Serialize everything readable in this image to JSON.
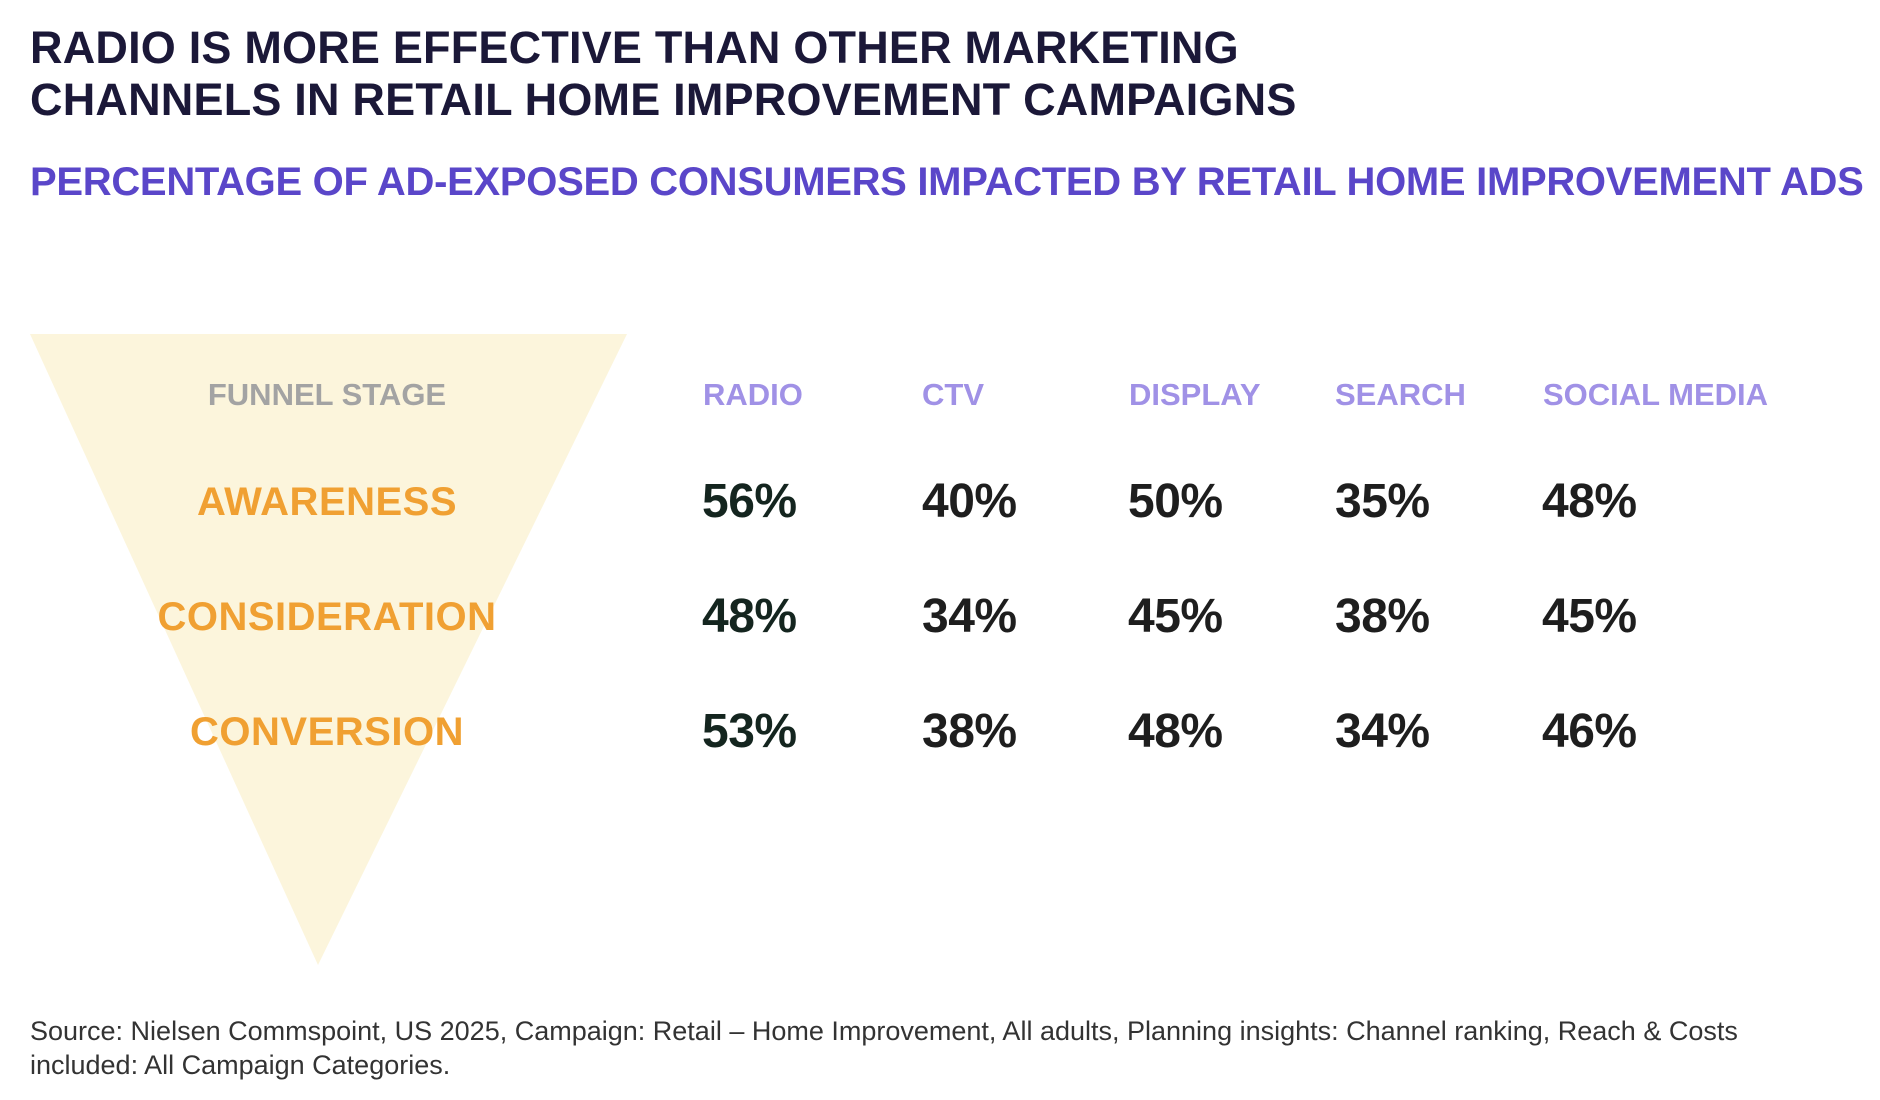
{
  "title_lines": [
    "RADIO IS MORE EFFECTIVE THAN OTHER MARKETING",
    "CHANNELS IN RETAIL HOME IMPROVEMENT CAMPAIGNS"
  ],
  "subtitle": "PERCENTAGE OF AD-EXPOSED CONSUMERS IMPACTED BY RETAIL HOME IMPROVEMENT ADS",
  "colors": {
    "title": "#1b1838",
    "subtitle": "#5a46c9",
    "channel_header": "#a091e6",
    "stage_header": "#a3a3a3",
    "stage_label": "#f0a032",
    "funnel_fill": "#fcf5dc",
    "value_text": "#1e1e1e"
  },
  "chart_data": {
    "type": "table",
    "stage_header": "FUNNEL STAGE",
    "columns": [
      "RADIO",
      "CTV",
      "DISPLAY",
      "SEARCH",
      "SOCIAL MEDIA"
    ],
    "rows": [
      {
        "stage": "AWARENESS",
        "values": [
          "56%",
          "40%",
          "50%",
          "35%",
          "48%"
        ]
      },
      {
        "stage": "CONSIDERATION",
        "values": [
          "48%",
          "34%",
          "45%",
          "38%",
          "45%"
        ]
      },
      {
        "stage": "CONVERSION",
        "values": [
          "53%",
          "38%",
          "48%",
          "34%",
          "46%"
        ]
      }
    ]
  },
  "source_lines": [
    "Source: Nielsen Commspoint, US 2025, Campaign: Retail – Home Improvement, All adults, Planning insights: Channel ranking, Reach & Costs",
    "included: All Campaign Categories."
  ]
}
